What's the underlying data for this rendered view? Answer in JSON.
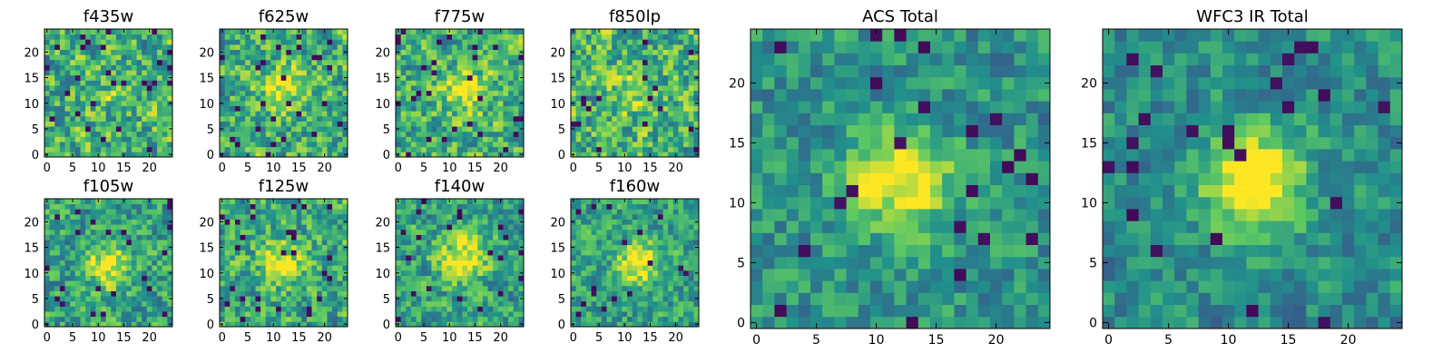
{
  "chart_data": [
    {
      "type": "heatmap",
      "title": "f435w",
      "size": 25,
      "seed": 11,
      "blob": [
        12,
        12,
        0.1
      ],
      "noise": 0.9,
      "xticks": [
        0,
        5,
        10,
        15,
        20
      ],
      "yticks": [
        0,
        5,
        10,
        15,
        20
      ],
      "xlim": [
        -0.5,
        24.5
      ],
      "ylim": [
        -0.5,
        24.5
      ]
    },
    {
      "type": "heatmap",
      "title": "f625w",
      "size": 25,
      "seed": 23,
      "blob": [
        12,
        13,
        0.35
      ],
      "noise": 0.85,
      "xticks": [
        0,
        5,
        10,
        15,
        20
      ],
      "yticks": [
        0,
        5,
        10,
        15,
        20
      ],
      "xlim": [
        -0.5,
        24.5
      ],
      "ylim": [
        -0.5,
        24.5
      ]
    },
    {
      "type": "heatmap",
      "title": "f775w",
      "size": 25,
      "seed": 37,
      "blob": [
        13,
        12,
        0.35
      ],
      "noise": 0.85,
      "xticks": [
        0,
        5,
        10,
        15,
        20
      ],
      "yticks": [
        0,
        5,
        10,
        15,
        20
      ],
      "xlim": [
        -0.5,
        24.5
      ],
      "ylim": [
        -0.5,
        24.5
      ]
    },
    {
      "type": "heatmap",
      "title": "f850lp",
      "size": 25,
      "seed": 41,
      "blob": [
        12,
        12,
        0.2
      ],
      "noise": 0.9,
      "xticks": [
        0,
        5,
        10,
        15,
        20
      ],
      "yticks": [
        0,
        5,
        10,
        15,
        20
      ],
      "xlim": [
        -0.5,
        24.5
      ],
      "ylim": [
        -0.5,
        24.5
      ]
    },
    {
      "type": "heatmap",
      "title": "f105w",
      "size": 25,
      "seed": 53,
      "blob": [
        12,
        11,
        0.4
      ],
      "noise": 0.75,
      "xticks": [
        0,
        5,
        10,
        15,
        20
      ],
      "yticks": [
        0,
        5,
        10,
        15,
        20
      ],
      "xlim": [
        -0.5,
        24.5
      ],
      "ylim": [
        -0.5,
        24.5
      ]
    },
    {
      "type": "heatmap",
      "title": "f125w",
      "size": 25,
      "seed": 67,
      "blob": [
        12,
        12,
        0.35
      ],
      "noise": 0.8,
      "xticks": [
        0,
        5,
        10,
        15,
        20
      ],
      "yticks": [
        0,
        5,
        10,
        15,
        20
      ],
      "xlim": [
        -0.5,
        24.5
      ],
      "ylim": [
        -0.5,
        24.5
      ]
    },
    {
      "type": "heatmap",
      "title": "f140w",
      "size": 25,
      "seed": 71,
      "blob": [
        13,
        13,
        0.45
      ],
      "noise": 0.75,
      "xticks": [
        0,
        5,
        10,
        15,
        20
      ],
      "yticks": [
        0,
        5,
        10,
        15,
        20
      ],
      "xlim": [
        -0.5,
        24.5
      ],
      "ylim": [
        -0.5,
        24.5
      ]
    },
    {
      "type": "heatmap",
      "title": "f160w",
      "size": 25,
      "seed": 83,
      "blob": [
        13,
        12,
        0.5
      ],
      "noise": 0.7,
      "xticks": [
        0,
        5,
        10,
        15,
        20
      ],
      "yticks": [
        0,
        5,
        10,
        15,
        20
      ],
      "xlim": [
        -0.5,
        24.5
      ],
      "ylim": [
        -0.5,
        24.5
      ]
    },
    {
      "type": "heatmap",
      "title": "ACS Total",
      "size": 25,
      "seed": 97,
      "blob": [
        12,
        12,
        0.55
      ],
      "noise": 0.6,
      "xticks": [
        0,
        5,
        10,
        15,
        20
      ],
      "yticks": [
        0,
        5,
        10,
        15,
        20
      ],
      "xlim": [
        -0.5,
        24.5
      ],
      "ylim": [
        -0.5,
        24.5
      ]
    },
    {
      "type": "heatmap",
      "title": "WFC3 IR Total",
      "size": 25,
      "seed": 101,
      "blob": [
        12,
        12,
        0.6
      ],
      "noise": 0.55,
      "xticks": [
        0,
        5,
        10,
        15,
        20
      ],
      "yticks": [
        0,
        5,
        10,
        15,
        20
      ],
      "xlim": [
        -0.5,
        24.5
      ],
      "ylim": [
        -0.5,
        24.5
      ]
    }
  ],
  "colormap": [
    "#440154",
    "#3b528b",
    "#21918c",
    "#5ec962",
    "#fde725"
  ]
}
